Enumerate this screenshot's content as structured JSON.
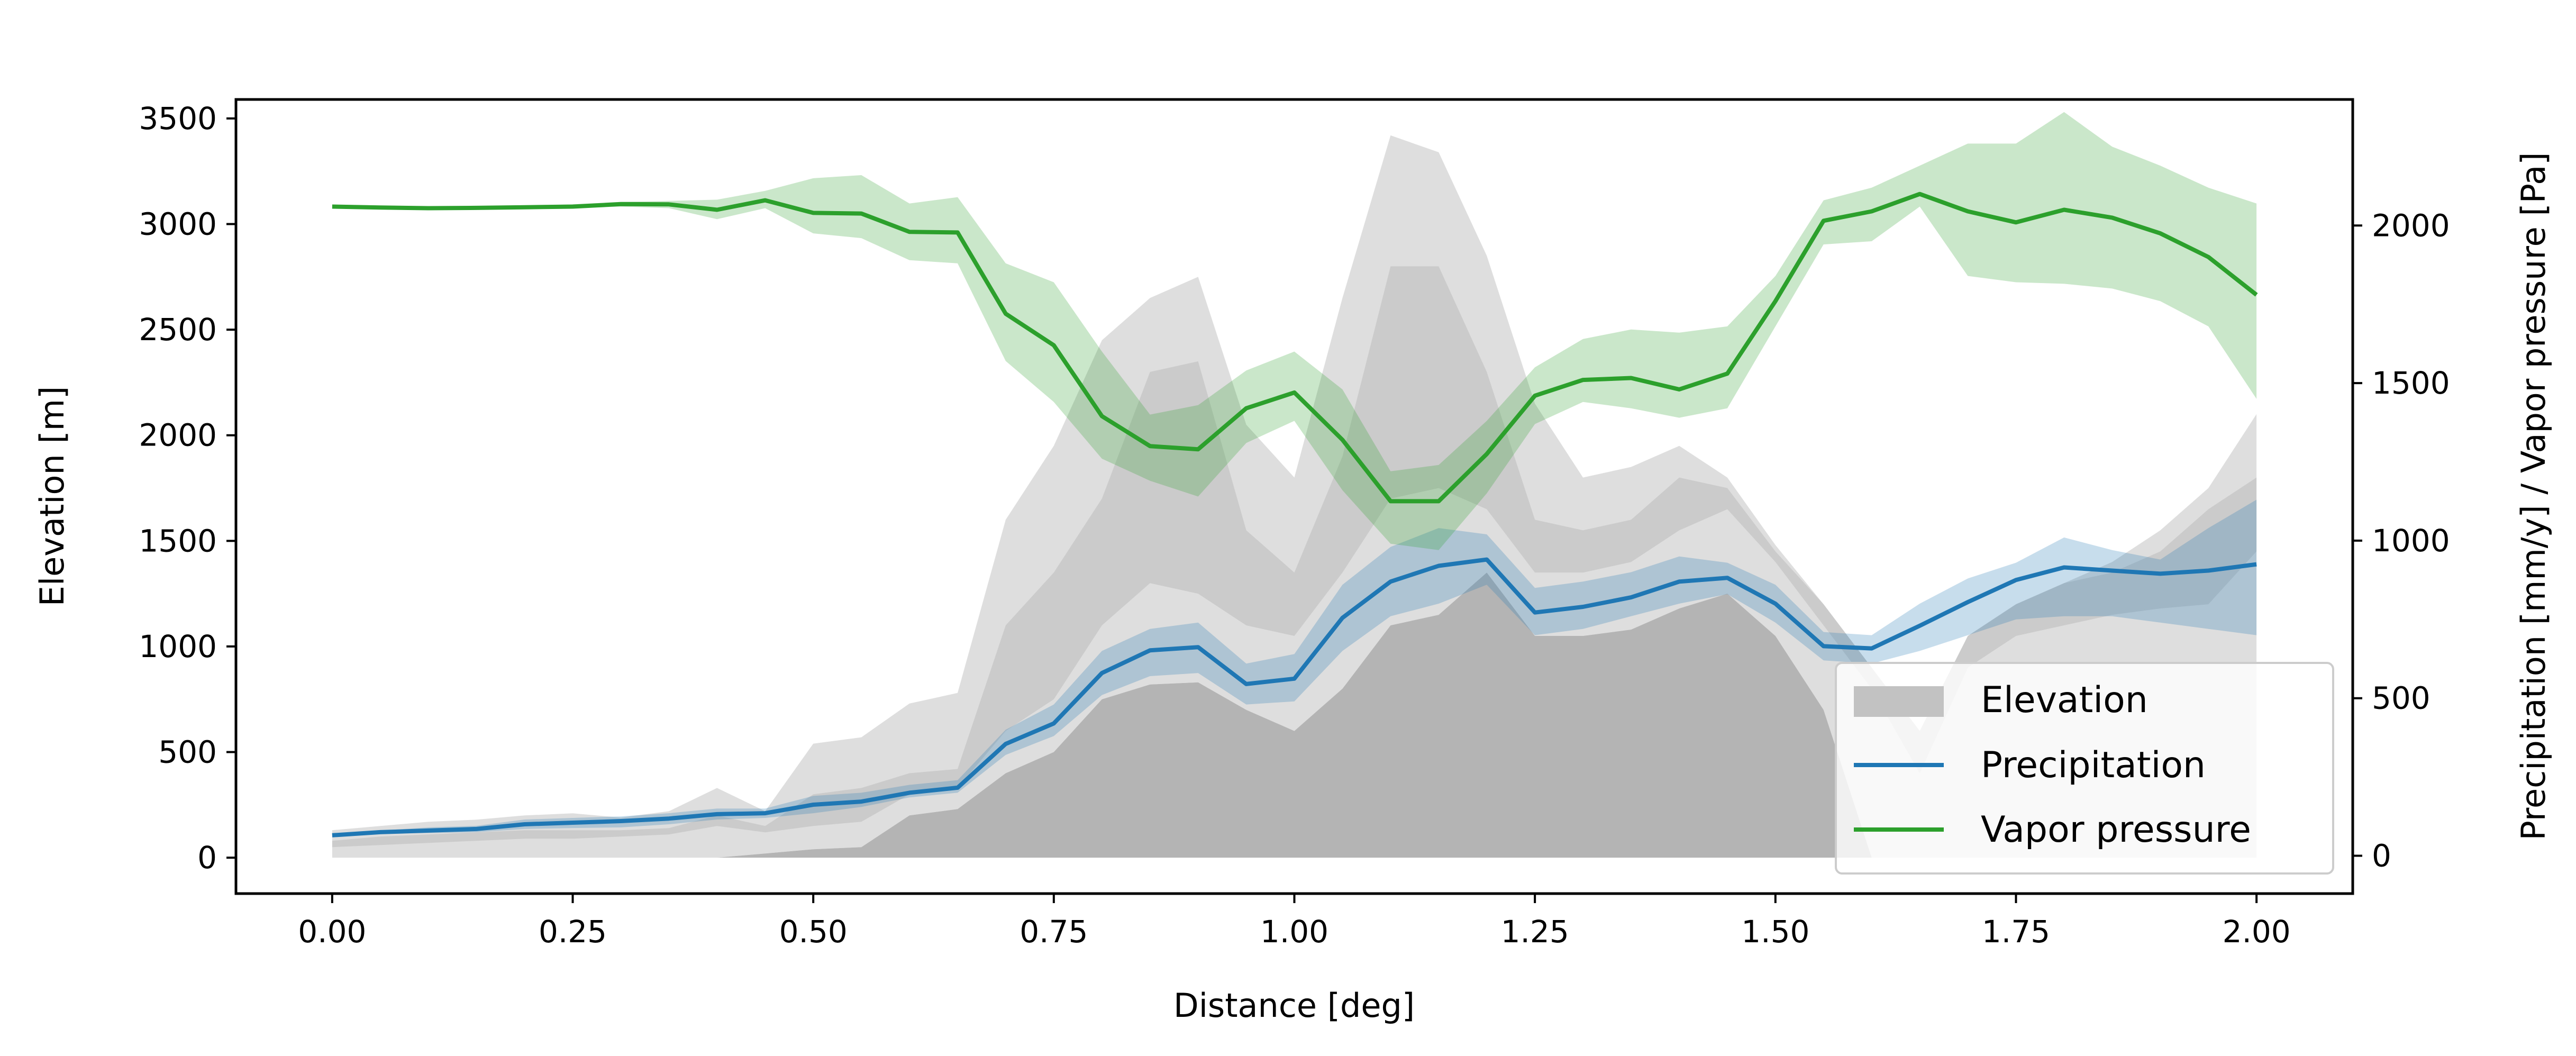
{
  "chart_data": {
    "type": "area",
    "xlabel": "Distance [deg]",
    "ylabel_left": "Elevation [m]",
    "ylabel_right": "Precipitation [mm/y] / Vapor pressure [Pa]",
    "xlim": [
      -0.1,
      2.1
    ],
    "ylim_left": [
      -170,
      3590
    ],
    "ylim_right": [
      -120,
      2400
    ],
    "x_ticks": [
      0.0,
      0.25,
      0.5,
      0.75,
      1.0,
      1.25,
      1.5,
      1.75,
      2.0
    ],
    "x_tick_labels": [
      "0.00",
      "0.25",
      "0.50",
      "0.75",
      "1.00",
      "1.25",
      "1.50",
      "1.75",
      "2.00"
    ],
    "y_left_ticks": [
      0,
      500,
      1000,
      1500,
      2000,
      2500,
      3000,
      3500
    ],
    "y_left_tick_labels": [
      "0",
      "500",
      "1000",
      "1500",
      "2000",
      "2500",
      "3000",
      "3500"
    ],
    "y_right_ticks": [
      0,
      500,
      1000,
      1500,
      2000
    ],
    "y_right_tick_labels": [
      "0",
      "500",
      "1000",
      "1500",
      "2000"
    ],
    "grid": false,
    "legend_position": "lower-right",
    "legend": [
      "Elevation",
      "Precipitation",
      "Vapor pressure"
    ],
    "x": [
      0.0,
      0.05,
      0.1,
      0.15,
      0.2,
      0.25,
      0.3,
      0.35,
      0.4,
      0.45,
      0.5,
      0.55,
      0.6,
      0.65,
      0.7,
      0.75,
      0.8,
      0.85,
      0.9,
      0.95,
      1.0,
      1.05,
      1.1,
      1.15,
      1.2,
      1.25,
      1.3,
      1.35,
      1.4,
      1.45,
      1.5,
      1.55,
      1.6,
      1.65,
      1.7,
      1.75,
      1.8,
      1.85,
      1.9,
      1.95,
      2.0
    ],
    "series": [
      {
        "name": "Elevation",
        "axis": "left",
        "color": "#b0b0b0",
        "min": [
          0,
          0,
          0,
          0,
          0,
          0,
          0,
          0,
          0,
          20,
          40,
          50,
          200,
          230,
          400,
          500,
          750,
          820,
          830,
          700,
          600,
          800,
          1100,
          1150,
          1350,
          1050,
          1050,
          1080,
          1180,
          1250,
          1050,
          700,
          0,
          0,
          0,
          0,
          0,
          0,
          0,
          0,
          0
        ],
        "p25": [
          50,
          60,
          70,
          80,
          90,
          90,
          100,
          110,
          150,
          120,
          150,
          170,
          300,
          330,
          600,
          750,
          1100,
          1300,
          1250,
          1100,
          1050,
          1350,
          1700,
          1750,
          1650,
          1350,
          1350,
          1400,
          1550,
          1650,
          1400,
          1100,
          800,
          400,
          900,
          1050,
          1100,
          1150,
          1180,
          1200,
          1450
        ],
        "p75": [
          80,
          100,
          110,
          120,
          130,
          130,
          130,
          140,
          200,
          150,
          300,
          330,
          400,
          420,
          1100,
          1350,
          1700,
          2300,
          2350,
          1550,
          1350,
          1900,
          2800,
          2800,
          2300,
          1600,
          1550,
          1600,
          1800,
          1750,
          1450,
          1200,
          900,
          600,
          1050,
          1200,
          1300,
          1350,
          1450,
          1650,
          1800
        ],
        "max": [
          130,
          150,
          170,
          180,
          200,
          210,
          190,
          220,
          330,
          220,
          540,
          570,
          730,
          780,
          1600,
          1950,
          2450,
          2650,
          2750,
          2050,
          1800,
          2650,
          3420,
          3340,
          2850,
          2150,
          1800,
          1850,
          1950,
          1800,
          1480,
          1200,
          900,
          600,
          1050,
          1200,
          1300,
          1400,
          1550,
          1750,
          2100
        ]
      },
      {
        "name": "Precipitation",
        "axis": "right",
        "color": "#1f77b4",
        "values": [
          65,
          75,
          80,
          85,
          100,
          105,
          110,
          118,
          132,
          135,
          162,
          172,
          200,
          216,
          355,
          420,
          580,
          652,
          662,
          545,
          562,
          755,
          870,
          920,
          940,
          772,
          790,
          820,
          870,
          882,
          800,
          665,
          658,
          730,
          805,
          875,
          915,
          905,
          895,
          905,
          925
        ],
        "lower": [
          65,
          70,
          72,
          75,
          85,
          88,
          90,
          100,
          115,
          120,
          135,
          155,
          185,
          200,
          320,
          380,
          510,
          570,
          580,
          480,
          490,
          650,
          760,
          800,
          860,
          700,
          720,
          760,
          800,
          830,
          740,
          620,
          610,
          650,
          700,
          750,
          760,
          760,
          740,
          720,
          700
        ],
        "upper": [
          65,
          80,
          90,
          95,
          115,
          120,
          125,
          135,
          150,
          150,
          190,
          200,
          225,
          240,
          400,
          480,
          650,
          720,
          740,
          610,
          640,
          860,
          980,
          1040,
          1020,
          850,
          870,
          900,
          950,
          930,
          860,
          710,
          700,
          800,
          880,
          930,
          1010,
          970,
          940,
          1040,
          1130
        ]
      },
      {
        "name": "Vapor pressure",
        "axis": "right",
        "color": "#2ca02c",
        "values": [
          2060,
          2057,
          2055,
          2056,
          2058,
          2060,
          2068,
          2067,
          2050,
          2080,
          2040,
          2038,
          1980,
          1978,
          1720,
          1620,
          1395,
          1300,
          1290,
          1420,
          1470,
          1320,
          1125,
          1125,
          1275,
          1460,
          1510,
          1516,
          1480,
          1530,
          1760,
          2015,
          2045,
          2100,
          2045,
          2010,
          2050,
          2025,
          1975,
          1900,
          1780
        ],
        "lower": [
          2060,
          2057,
          2055,
          2056,
          2058,
          2055,
          2060,
          2055,
          2020,
          2055,
          1975,
          1960,
          1890,
          1880,
          1570,
          1440,
          1260,
          1190,
          1140,
          1310,
          1380,
          1160,
          990,
          970,
          1150,
          1370,
          1440,
          1420,
          1390,
          1420,
          1680,
          1940,
          1950,
          2060,
          1840,
          1820,
          1815,
          1800,
          1760,
          1680,
          1450
        ],
        "upper": [
          2060,
          2060,
          2058,
          2060,
          2062,
          2067,
          2075,
          2078,
          2082,
          2110,
          2150,
          2160,
          2070,
          2090,
          1880,
          1820,
          1600,
          1400,
          1430,
          1540,
          1600,
          1480,
          1220,
          1240,
          1380,
          1550,
          1640,
          1670,
          1660,
          1680,
          1840,
          2080,
          2120,
          2190,
          2260,
          2260,
          2360,
          2250,
          2190,
          2120,
          2070
        ]
      }
    ]
  }
}
